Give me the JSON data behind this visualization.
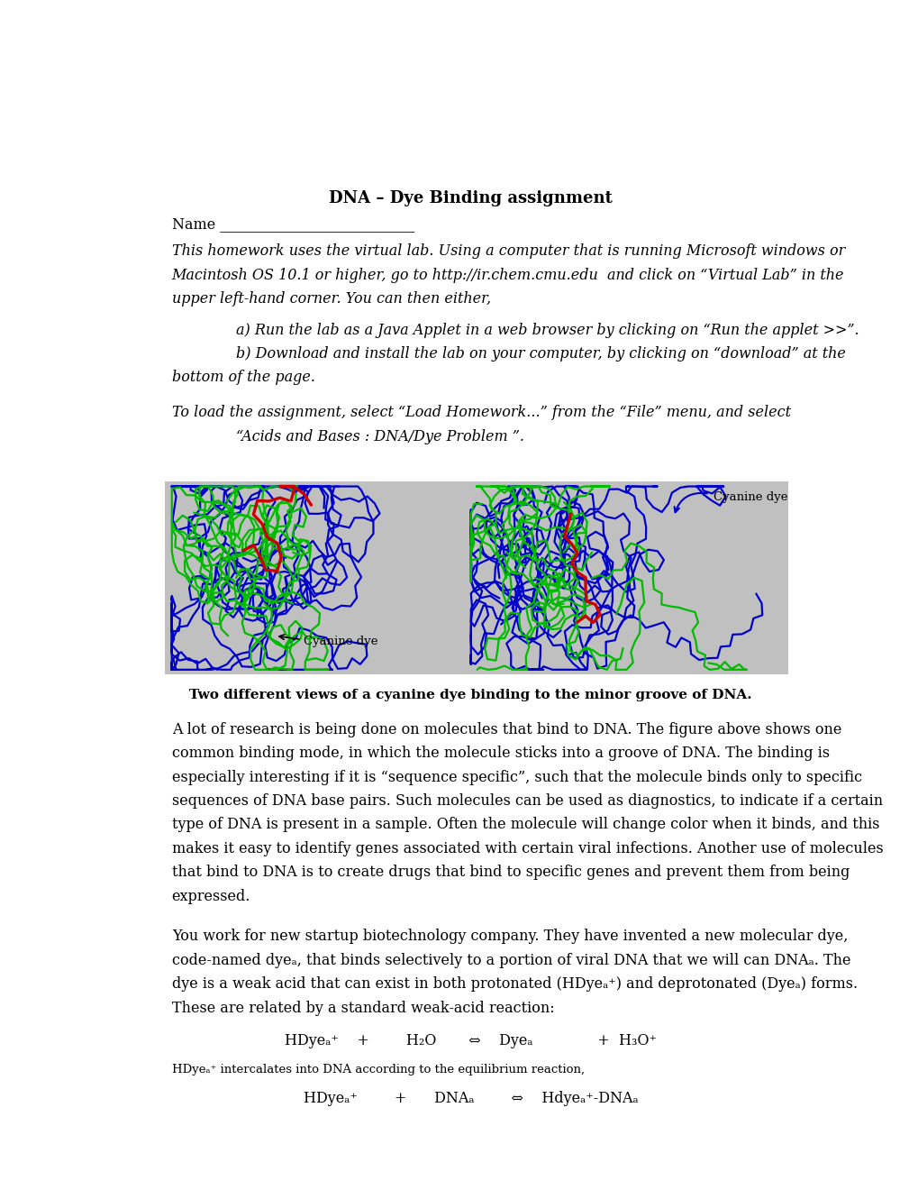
{
  "title": "DNA – Dye Binding assignment",
  "name_label": "Name",
  "p1_line1": "This homework uses the virtual lab. Using a computer that is running Microsoft windows or",
  "p1_line2": "Macintosh OS 10.1 or higher, go to http://ir.chem.cmu.edu  and click on “Virtual Lab” in the",
  "p1_line3": "upper left-hand corner. You can then either,",
  "item_a": "a) Run the lab as a Java Applet in a web browser by clicking on “Run the applet >>”.",
  "item_b1": "b) Download and install the lab on your computer, by clicking on “download” at the",
  "item_b2": "bottom of the page.",
  "p2_line1": "To load the assignment, select “Load Homework...” from the “File” menu, and select",
  "p2_line2": "“Acids and Bases : DNA/Dye Problem ”.",
  "image_caption": "Two different views of a cyanine dye binding to the minor groove of DNA.",
  "p3_lines": [
    "A lot of research is being done on molecules that bind to DNA. The figure above shows one",
    "common binding mode, in which the molecule sticks into a groove of DNA. The binding is",
    "especially interesting if it is “sequence specific”, such that the molecule binds only to specific",
    "sequences of DNA base pairs. Such molecules can be used as diagnostics, to indicate if a certain",
    "type of DNA is present in a sample. Often the molecule will change color when it binds, and this",
    "makes it easy to identify genes associated with certain viral infections. Another use of molecules",
    "that bind to DNA is to create drugs that bind to specific genes and prevent them from being",
    "expressed."
  ],
  "p4_line1": "You work for new startup biotechnology company. They have invented a new molecular dye,",
  "p4_line2": "code-named dyeₐ, that binds selectively to a portion of viral DNA that we will can DNAₐ. The",
  "p4_line3": "dye is a weak acid that can exist in both protonated (HDyeₐ⁺) and deprotonated (Dyeₐ) forms.",
  "p4_line4": "These are related by a standard weak-acid reaction:",
  "eq1": "HDyeₐ⁺    +        H₂O       ⇔    Dyeₐ              +  H₃O⁺",
  "note1": "HDyeₐ⁺ intercalates into DNA according to the equilibrium reaction,",
  "eq2": "HDyeₐ⁺        +      DNAₐ        ⇔    Hdyeₐ⁺-DNAₐ",
  "bg": "#ffffff",
  "img_bg": "#c0c0c0",
  "blue": "#0000cc",
  "green": "#00bb00",
  "red": "#cc0000"
}
